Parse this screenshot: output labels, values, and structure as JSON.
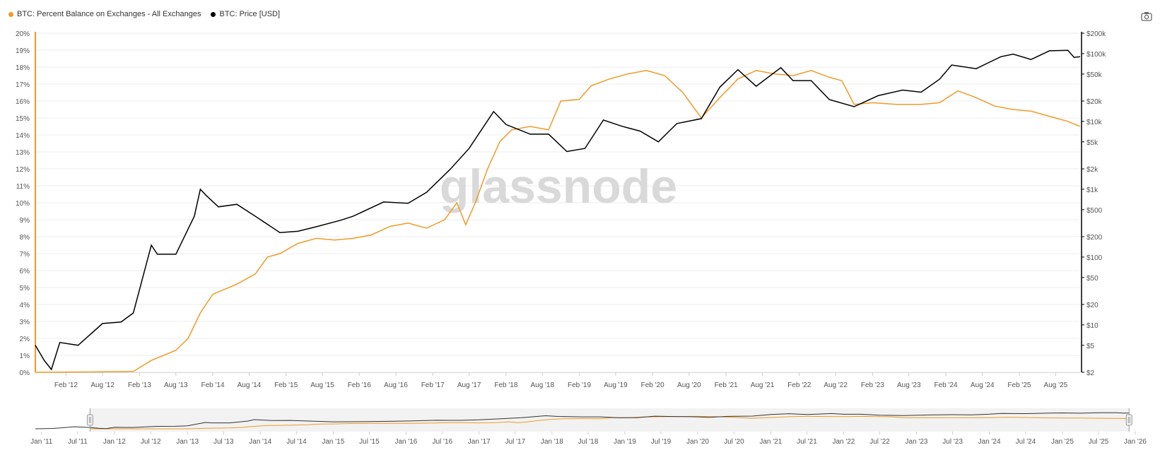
{
  "legend": {
    "series_a": "BTC: Percent Balance on Exchanges - All Exchanges",
    "series_b": "BTC: Price [USD]"
  },
  "watermark": "glassnode",
  "colors": {
    "balance": "#f09a28",
    "price": "#000000",
    "grid": "#ececec",
    "axis": "#f09a28"
  },
  "icons": {
    "export": "camera-icon"
  },
  "navigator": {
    "ticks": [
      "Jan '11",
      "Jul '11",
      "Jan '12",
      "Jul '12",
      "Jan '13",
      "Jul '13",
      "Jan '14",
      "Jul '14",
      "Jan '15",
      "Jul '15",
      "Jan '16",
      "Jul '16",
      "Jan '17",
      "Jul '17",
      "Jan '18",
      "Jul '18",
      "Jan '19",
      "Jul '19",
      "Jan '20",
      "Jul '20",
      "Jan '21",
      "Jul '21",
      "Jan '22",
      "Jul '22",
      "Jan '23",
      "Jul '23",
      "Jan '24",
      "Jul '24",
      "Jan '25",
      "Jul '25",
      "Jan '26"
    ],
    "range": [
      "2011-09-01",
      "2025-12-01"
    ]
  },
  "chart_data": {
    "type": "line",
    "title": "",
    "xlim": [
      "2011-09-01",
      "2025-12-01"
    ],
    "x_ticks": [
      "Feb '12",
      "Aug '12",
      "Feb '13",
      "Aug '13",
      "Feb '14",
      "Aug '14",
      "Feb '15",
      "Aug '15",
      "Feb '16",
      "Aug '16",
      "Feb '17",
      "Aug '17",
      "Feb '18",
      "Aug '18",
      "Feb '19",
      "Aug '19",
      "Feb '20",
      "Aug '20",
      "Feb '21",
      "Aug '21",
      "Feb '22",
      "Aug '22",
      "Feb '23",
      "Aug '23",
      "Feb '24",
      "Aug '24",
      "Feb '25",
      "Aug '25"
    ],
    "y_left": {
      "range": [
        0,
        20
      ],
      "ticks": [
        "0%",
        "1%",
        "2%",
        "3%",
        "4%",
        "5%",
        "6%",
        "7%",
        "8%",
        "9%",
        "10%",
        "11%",
        "12%",
        "13%",
        "14%",
        "15%",
        "16%",
        "17%",
        "18%",
        "19%",
        "20%"
      ]
    },
    "y_right": {
      "scale": "log",
      "range": [
        2,
        200000
      ],
      "ticks": [
        {
          "value": 2,
          "label": "$2"
        },
        {
          "value": 5,
          "label": "$5"
        },
        {
          "value": 10,
          "label": "$10"
        },
        {
          "value": 20,
          "label": "$20"
        },
        {
          "value": 50,
          "label": "$50"
        },
        {
          "value": 100,
          "label": "$100"
        },
        {
          "value": 200,
          "label": "$200"
        },
        {
          "value": 500,
          "label": "$500"
        },
        {
          "value": 1000,
          "label": "$1k"
        },
        {
          "value": 2000,
          "label": "$2k"
        },
        {
          "value": 5000,
          "label": "$5k"
        },
        {
          "value": 10000,
          "label": "$10k"
        },
        {
          "value": 20000,
          "label": "$20k"
        },
        {
          "value": 50000,
          "label": "$50k"
        },
        {
          "value": 100000,
          "label": "$100k"
        },
        {
          "value": 200000,
          "label": "$200k"
        }
      ]
    },
    "grid": true,
    "legend_position": "top-left",
    "series": [
      {
        "name": "BTC: Percent Balance on Exchanges - All Exchanges",
        "axis": "left",
        "unit": "%",
        "points": [
          [
            "2011-09-01",
            0.0
          ],
          [
            "2012-06-01",
            0.02
          ],
          [
            "2013-01-01",
            0.05
          ],
          [
            "2013-04-01",
            0.7
          ],
          [
            "2013-08-01",
            1.3
          ],
          [
            "2013-10-01",
            2.0
          ],
          [
            "2013-12-01",
            3.5
          ],
          [
            "2014-02-01",
            4.6
          ],
          [
            "2014-06-01",
            5.2
          ],
          [
            "2014-09-01",
            5.8
          ],
          [
            "2014-11-01",
            6.8
          ],
          [
            "2015-01-01",
            7.0
          ],
          [
            "2015-04-01",
            7.6
          ],
          [
            "2015-07-01",
            7.9
          ],
          [
            "2015-10-01",
            7.8
          ],
          [
            "2016-01-01",
            7.9
          ],
          [
            "2016-04-01",
            8.1
          ],
          [
            "2016-07-01",
            8.6
          ],
          [
            "2016-10-01",
            8.8
          ],
          [
            "2017-01-01",
            8.5
          ],
          [
            "2017-04-01",
            9.0
          ],
          [
            "2017-06-01",
            10.0
          ],
          [
            "2017-07-15",
            8.7
          ],
          [
            "2017-09-01",
            10.0
          ],
          [
            "2017-11-01",
            12.0
          ],
          [
            "2018-01-01",
            13.6
          ],
          [
            "2018-03-01",
            14.3
          ],
          [
            "2018-06-01",
            14.5
          ],
          [
            "2018-09-01",
            14.3
          ],
          [
            "2018-11-01",
            16.0
          ],
          [
            "2019-02-01",
            16.1
          ],
          [
            "2019-04-01",
            16.9
          ],
          [
            "2019-07-01",
            17.3
          ],
          [
            "2019-10-01",
            17.6
          ],
          [
            "2020-01-01",
            17.8
          ],
          [
            "2020-04-01",
            17.5
          ],
          [
            "2020-07-01",
            16.5
          ],
          [
            "2020-10-01",
            15.0
          ],
          [
            "2021-01-01",
            16.2
          ],
          [
            "2021-04-01",
            17.3
          ],
          [
            "2021-07-01",
            17.8
          ],
          [
            "2021-10-01",
            17.6
          ],
          [
            "2022-01-01",
            17.5
          ],
          [
            "2022-04-01",
            17.8
          ],
          [
            "2022-07-01",
            17.4
          ],
          [
            "2022-09-01",
            17.2
          ],
          [
            "2022-11-01",
            15.8
          ],
          [
            "2023-02-01",
            15.9
          ],
          [
            "2023-06-01",
            15.8
          ],
          [
            "2023-10-01",
            15.8
          ],
          [
            "2024-01-01",
            15.9
          ],
          [
            "2024-04-01",
            16.6
          ],
          [
            "2024-07-01",
            16.2
          ],
          [
            "2024-10-01",
            15.7
          ],
          [
            "2025-01-01",
            15.5
          ],
          [
            "2025-04-01",
            15.4
          ],
          [
            "2025-07-01",
            15.1
          ],
          [
            "2025-10-01",
            14.8
          ],
          [
            "2025-12-01",
            14.5
          ]
        ]
      },
      {
        "name": "BTC: Price [USD]",
        "axis": "right",
        "unit": "USD",
        "points": [
          [
            "2011-09-01",
            5.0
          ],
          [
            "2011-10-15",
            3.0
          ],
          [
            "2011-11-20",
            2.2
          ],
          [
            "2012-01-01",
            5.5
          ],
          [
            "2012-04-01",
            5.0
          ],
          [
            "2012-08-01",
            10.5
          ],
          [
            "2012-11-01",
            11.0
          ],
          [
            "2013-01-01",
            15.0
          ],
          [
            "2013-04-01",
            150
          ],
          [
            "2013-05-01",
            110
          ],
          [
            "2013-08-01",
            110
          ],
          [
            "2013-11-01",
            400
          ],
          [
            "2013-12-01",
            1000
          ],
          [
            "2014-01-01",
            800
          ],
          [
            "2014-03-01",
            550
          ],
          [
            "2014-06-01",
            600
          ],
          [
            "2014-09-01",
            400
          ],
          [
            "2015-01-01",
            230
          ],
          [
            "2015-04-01",
            240
          ],
          [
            "2015-07-01",
            280
          ],
          [
            "2015-11-01",
            350
          ],
          [
            "2016-01-01",
            400
          ],
          [
            "2016-06-01",
            650
          ],
          [
            "2016-10-01",
            620
          ],
          [
            "2017-01-01",
            900
          ],
          [
            "2017-05-01",
            2000
          ],
          [
            "2017-08-01",
            4000
          ],
          [
            "2017-12-01",
            14000
          ],
          [
            "2018-02-01",
            9000
          ],
          [
            "2018-06-01",
            6500
          ],
          [
            "2018-09-01",
            6500
          ],
          [
            "2018-12-01",
            3600
          ],
          [
            "2019-03-01",
            4000
          ],
          [
            "2019-06-01",
            10500
          ],
          [
            "2019-09-01",
            8500
          ],
          [
            "2019-12-01",
            7200
          ],
          [
            "2020-03-01",
            5000
          ],
          [
            "2020-06-01",
            9300
          ],
          [
            "2020-10-01",
            11000
          ],
          [
            "2021-01-01",
            32000
          ],
          [
            "2021-04-01",
            58000
          ],
          [
            "2021-07-01",
            33000
          ],
          [
            "2021-11-01",
            62000
          ],
          [
            "2022-01-01",
            40000
          ],
          [
            "2022-04-01",
            40000
          ],
          [
            "2022-07-01",
            21000
          ],
          [
            "2022-11-01",
            16500
          ],
          [
            "2023-03-01",
            24000
          ],
          [
            "2023-07-01",
            29000
          ],
          [
            "2023-10-01",
            27000
          ],
          [
            "2024-01-01",
            42000
          ],
          [
            "2024-03-01",
            68000
          ],
          [
            "2024-07-01",
            60000
          ],
          [
            "2024-11-01",
            90000
          ],
          [
            "2025-01-01",
            98000
          ],
          [
            "2025-04-01",
            82000
          ],
          [
            "2025-07-01",
            110000
          ],
          [
            "2025-10-01",
            112000
          ],
          [
            "2025-11-01",
            88000
          ],
          [
            "2025-12-01",
            90000
          ]
        ]
      }
    ]
  }
}
